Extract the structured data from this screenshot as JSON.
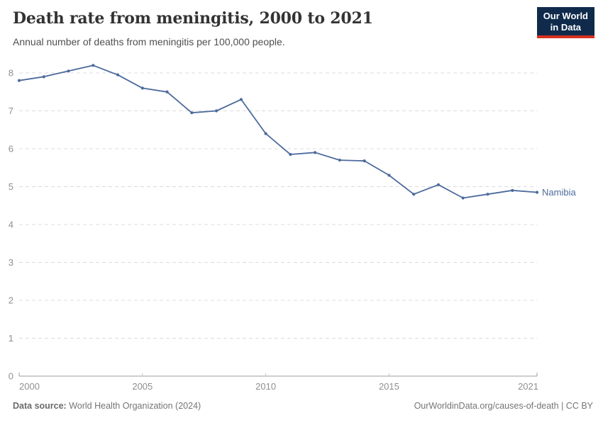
{
  "header": {
    "title": "Death rate from meningitis, 2000 to 2021",
    "subtitle": "Annual number of deaths from meningitis per 100,000 people.",
    "logo": {
      "line1": "Our World",
      "line2": "in Data",
      "background_color": "#0f2a4b",
      "accent_color": "#d7301e"
    }
  },
  "chart_data": {
    "type": "line",
    "title": "Death rate from meningitis, 2000 to 2021",
    "xlabel": "",
    "ylabel": "",
    "xlim": [
      2000,
      2021
    ],
    "ylim": [
      0,
      8
    ],
    "yticks": [
      0,
      1,
      2,
      3,
      4,
      5,
      6,
      7,
      8
    ],
    "xticks": [
      2000,
      2005,
      2010,
      2015,
      2021
    ],
    "grid": "horizontal-dashed",
    "grid_color": "#dcdcdc",
    "axis_color": "#9e9e9e",
    "tick_label_color": "#8f8f8f",
    "legend_position": "end-of-line-label",
    "series": [
      {
        "name": "Namibia",
        "color": "#4c6a9c",
        "x": [
          2000,
          2001,
          2002,
          2003,
          2004,
          2005,
          2006,
          2007,
          2008,
          2009,
          2010,
          2011,
          2012,
          2013,
          2014,
          2015,
          2016,
          2017,
          2018,
          2019,
          2020,
          2021
        ],
        "values": [
          7.8,
          7.9,
          8.05,
          8.2,
          7.95,
          7.6,
          7.5,
          6.95,
          7.0,
          7.3,
          6.4,
          5.85,
          5.9,
          5.7,
          5.68,
          5.3,
          4.8,
          5.05,
          4.7,
          4.8,
          4.9,
          4.85
        ]
      }
    ]
  },
  "footer": {
    "source_label": "Data source:",
    "source_text": "World Health Organization (2024)",
    "link": "OurWorldinData.org/causes-of-death | CC BY"
  }
}
